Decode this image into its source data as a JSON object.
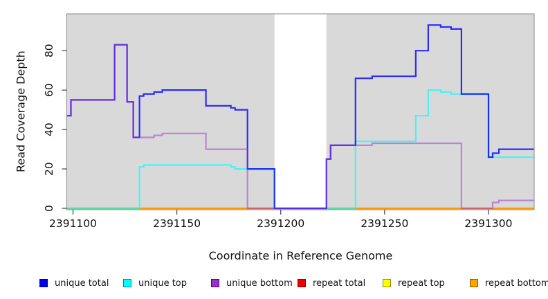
{
  "chart_data": {
    "type": "line",
    "subtype": "step",
    "title": "",
    "xlabel": "Coordinate in Reference Genome",
    "ylabel": "Read Coverage Depth",
    "xlim": [
      2391097,
      2391322
    ],
    "ylim": [
      0,
      98
    ],
    "x_ticks": [
      2391100,
      2391150,
      2391200,
      2391250,
      2391300
    ],
    "y_ticks": [
      0,
      20,
      40,
      60,
      80
    ],
    "grid": "off",
    "plot_bg": "#D9D9D9",
    "border_color": "#888888",
    "tick_color": "#404040",
    "masked_region": {
      "x_start": 2391197,
      "x_end": 2391222,
      "color": "#FFFFFF"
    },
    "series": [
      {
        "name": "repeat total",
        "color": "#EE0000",
        "opacity": 1,
        "width": 1.5,
        "steps": [
          [
            2391097,
            0
          ],
          [
            2391322,
            0
          ]
        ]
      },
      {
        "name": "repeat top",
        "color": "#FFFF00",
        "opacity": 1,
        "width": 1.5,
        "steps": [
          [
            2391097,
            0
          ],
          [
            2391322,
            0
          ]
        ]
      },
      {
        "name": "repeat bottom",
        "color": "#FF9900",
        "opacity": 1,
        "width": 2.2,
        "steps": [
          [
            2391097,
            0
          ],
          [
            2391322,
            0
          ]
        ]
      },
      {
        "name": "unique top",
        "color": "#00FFFF",
        "opacity": 0.65,
        "width": 2.2,
        "steps": [
          [
            2391097,
            0
          ],
          [
            2391132,
            21
          ],
          [
            2391134,
            22
          ],
          [
            2391176,
            21
          ],
          [
            2391178,
            20
          ],
          [
            2391197,
            0
          ],
          [
            2391236,
            34
          ],
          [
            2391265,
            47
          ],
          [
            2391271,
            60
          ],
          [
            2391277,
            59
          ],
          [
            2391282,
            58
          ],
          [
            2391300,
            26
          ],
          [
            2391322,
            26
          ]
        ]
      },
      {
        "name": "unique total",
        "color": "#0000FF",
        "opacity": 0.8,
        "width": 2.2,
        "steps": [
          [
            2391097,
            47
          ],
          [
            2391099,
            55
          ],
          [
            2391120,
            83
          ],
          [
            2391126,
            54
          ],
          [
            2391129,
            36
          ],
          [
            2391132,
            57
          ],
          [
            2391134,
            58
          ],
          [
            2391139,
            59
          ],
          [
            2391143,
            60
          ],
          [
            2391164,
            52
          ],
          [
            2391176,
            51
          ],
          [
            2391178,
            50
          ],
          [
            2391184,
            20
          ],
          [
            2391197,
            0
          ],
          [
            2391222,
            25
          ],
          [
            2391224,
            32
          ],
          [
            2391236,
            66
          ],
          [
            2391244,
            67
          ],
          [
            2391265,
            80
          ],
          [
            2391271,
            93
          ],
          [
            2391277,
            92
          ],
          [
            2391282,
            91
          ],
          [
            2391287,
            58
          ],
          [
            2391300,
            26
          ],
          [
            2391302,
            28
          ],
          [
            2391305,
            30
          ],
          [
            2391322,
            30
          ]
        ]
      },
      {
        "name": "unique bottom",
        "color": "#9932CC",
        "opacity": 0.5,
        "width": 2.2,
        "steps": [
          [
            2391097,
            47
          ],
          [
            2391099,
            55
          ],
          [
            2391120,
            83
          ],
          [
            2391126,
            54
          ],
          [
            2391129,
            36
          ],
          [
            2391139,
            37
          ],
          [
            2391143,
            38
          ],
          [
            2391164,
            30
          ],
          [
            2391184,
            0
          ],
          [
            2391222,
            25
          ],
          [
            2391224,
            32
          ],
          [
            2391244,
            33
          ],
          [
            2391287,
            0
          ],
          [
            2391302,
            3
          ],
          [
            2391305,
            4
          ],
          [
            2391322,
            4
          ]
        ]
      }
    ],
    "legend": {
      "position": "bottom",
      "items": [
        {
          "label": "unique total",
          "fill": "#0000EE",
          "border": "#00008B"
        },
        {
          "label": "unique top",
          "fill": "#00FFFF",
          "border": "#008B8B"
        },
        {
          "label": "unique bottom",
          "fill": "#9932CC",
          "border": "#4B0082"
        },
        {
          "label": "repeat total",
          "fill": "#EE0000",
          "border": "#8B0000"
        },
        {
          "label": "repeat top",
          "fill": "#FFFF00",
          "border": "#8B8B00"
        },
        {
          "label": "repeat bottom",
          "fill": "#FFA500",
          "border": "#8B5A00"
        }
      ]
    }
  }
}
